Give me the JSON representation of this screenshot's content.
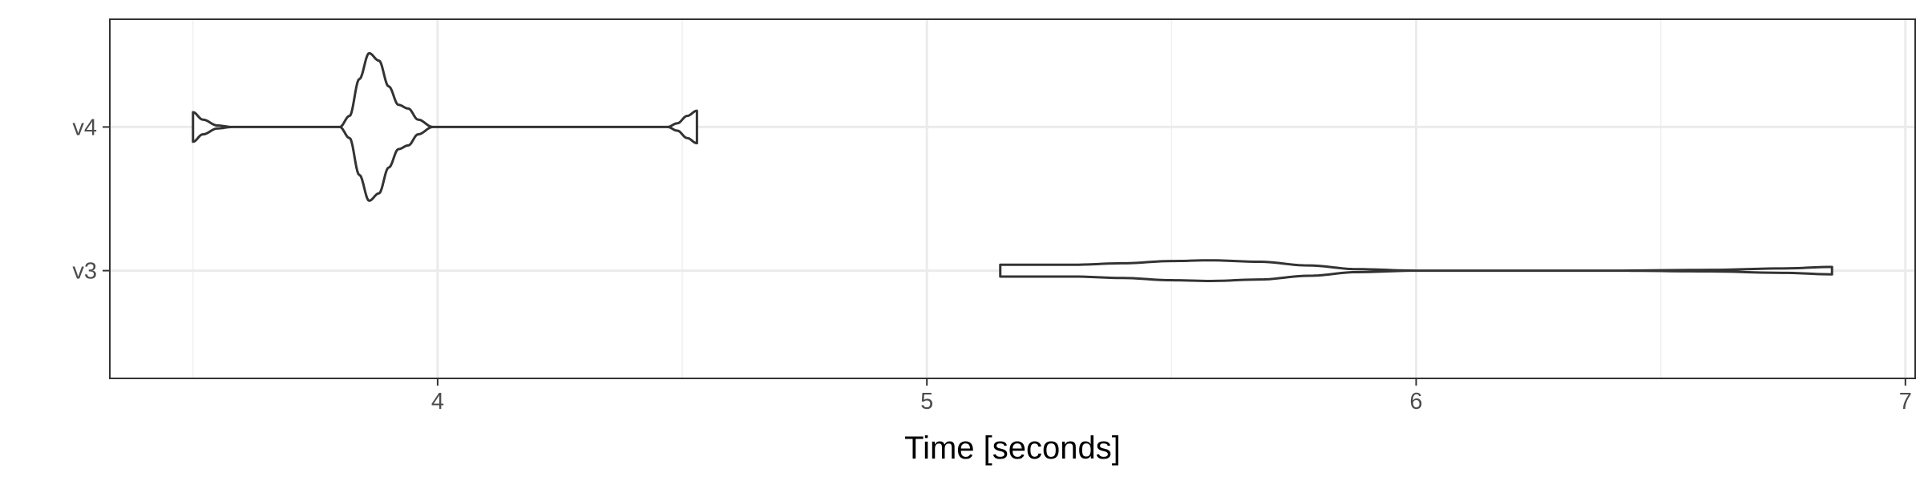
{
  "chart_data": {
    "type": "violin",
    "orientation": "horizontal",
    "xlabel": "Time [seconds]",
    "ylabel": "",
    "xlim": [
      3.33,
      7.02
    ],
    "x_ticks": [
      4,
      5,
      6,
      7
    ],
    "x_tick_labels": [
      "4",
      "5",
      "6",
      "7"
    ],
    "categories": [
      "v3",
      "v4"
    ],
    "grid": true,
    "series": [
      {
        "name": "v4",
        "min": 3.5,
        "max": 4.53,
        "profile": [
          [
            3.5,
            0.2
          ],
          [
            3.52,
            0.1
          ],
          [
            3.55,
            0.02
          ],
          [
            3.58,
            0.0
          ],
          [
            3.8,
            0.0
          ],
          [
            3.82,
            0.15
          ],
          [
            3.84,
            0.65
          ],
          [
            3.86,
            1.0
          ],
          [
            3.88,
            0.9
          ],
          [
            3.9,
            0.55
          ],
          [
            3.92,
            0.3
          ],
          [
            3.94,
            0.25
          ],
          [
            3.96,
            0.1
          ],
          [
            3.99,
            0.0
          ],
          [
            4.47,
            0.0
          ],
          [
            4.49,
            0.05
          ],
          [
            4.51,
            0.15
          ],
          [
            4.53,
            0.22
          ]
        ]
      },
      {
        "name": "v3",
        "min": 5.15,
        "max": 6.85,
        "profile": [
          [
            5.15,
            0.08
          ],
          [
            5.3,
            0.08
          ],
          [
            5.4,
            0.1
          ],
          [
            5.5,
            0.13
          ],
          [
            5.58,
            0.14
          ],
          [
            5.68,
            0.12
          ],
          [
            5.78,
            0.07
          ],
          [
            5.88,
            0.02
          ],
          [
            6.0,
            0.0
          ],
          [
            6.4,
            0.0
          ],
          [
            6.6,
            0.01
          ],
          [
            6.75,
            0.03
          ],
          [
            6.85,
            0.05
          ]
        ]
      }
    ]
  }
}
